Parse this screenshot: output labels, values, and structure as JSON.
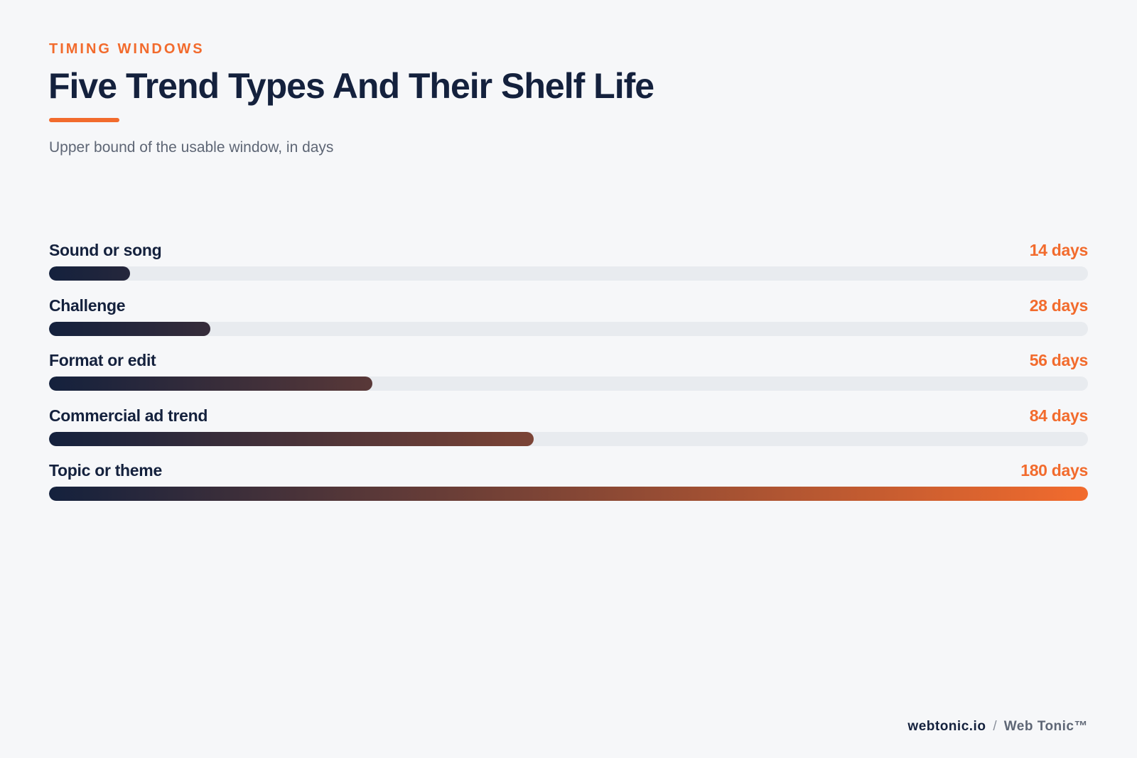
{
  "header": {
    "eyebrow": "TIMING WINDOWS",
    "title": "Five Trend Types And Their Shelf Life",
    "subtitle": "Upper bound of the usable window, in days"
  },
  "colors": {
    "accent": "#f26b2d",
    "navy": "#14213d",
    "track": "#e8ebef",
    "background": "#f6f7f9"
  },
  "chart_data": {
    "type": "bar",
    "orientation": "horizontal",
    "title": "Five Trend Types And Their Shelf Life",
    "subtitle": "Upper bound of the usable window, in days",
    "categories": [
      "Sound or song",
      "Challenge",
      "Format or edit",
      "Commercial ad trend",
      "Topic or theme"
    ],
    "values": [
      14,
      28,
      56,
      84,
      180
    ],
    "value_labels": [
      "14 days",
      "28 days",
      "56 days",
      "84 days",
      "180 days"
    ],
    "xlim": [
      0,
      180
    ],
    "grid": false
  },
  "footer": {
    "site": "webtonic.io",
    "separator": "/",
    "brand": "Web Tonic™"
  }
}
